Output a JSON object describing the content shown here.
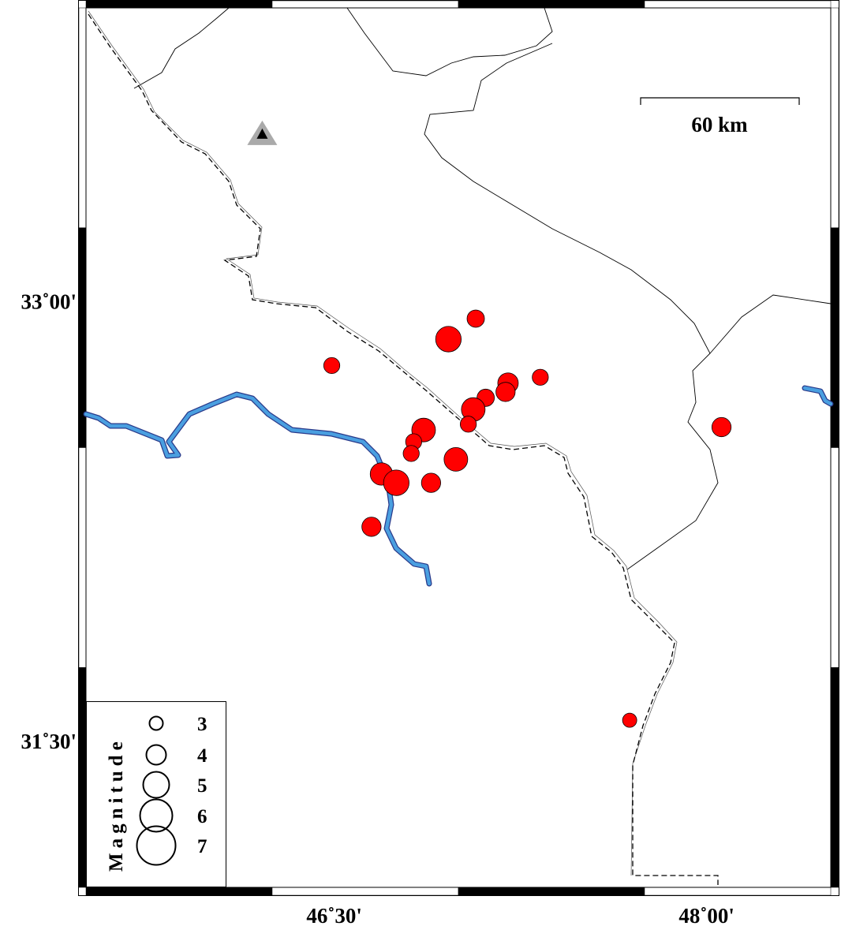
{
  "map": {
    "extent": {
      "lon_min": 45.5,
      "lon_max": 48.5,
      "lat_min": 31.0,
      "lat_max": 34.0
    },
    "x_ticks": [
      {
        "lon": 46.5,
        "label": "46˚30'"
      },
      {
        "lon": 48.0,
        "label": "48˚00'"
      }
    ],
    "y_ticks": [
      {
        "lat": 33.0,
        "label": "33˚00'"
      },
      {
        "lat": 31.5,
        "label": "31˚30'"
      }
    ],
    "scale_bar": {
      "label": "60 km",
      "length_km": 60
    },
    "colors": {
      "event": "#ff0000",
      "river": "#4a9fe0",
      "river_outline": "#2a3a8a",
      "station": "#aaaaaa"
    },
    "station": {
      "lon": 46.21,
      "lat": 33.57,
      "icon": "triangle-icon"
    },
    "events": [
      {
        "lon": 47.07,
        "lat": 32.94,
        "mag": 3.5
      },
      {
        "lon": 46.96,
        "lat": 32.87,
        "mag": 4.8
      },
      {
        "lon": 46.49,
        "lat": 32.78,
        "mag": 3.3
      },
      {
        "lon": 47.33,
        "lat": 32.74,
        "mag": 3.3
      },
      {
        "lon": 47.2,
        "lat": 32.72,
        "mag": 4.0
      },
      {
        "lon": 47.19,
        "lat": 32.69,
        "mag": 3.8
      },
      {
        "lon": 47.11,
        "lat": 32.67,
        "mag": 3.5
      },
      {
        "lon": 47.06,
        "lat": 32.63,
        "mag": 4.5
      },
      {
        "lon": 47.04,
        "lat": 32.58,
        "mag": 3.3
      },
      {
        "lon": 46.86,
        "lat": 32.56,
        "mag": 4.5
      },
      {
        "lon": 46.82,
        "lat": 32.52,
        "mag": 3.3
      },
      {
        "lon": 46.81,
        "lat": 32.48,
        "mag": 3.3
      },
      {
        "lon": 46.99,
        "lat": 32.46,
        "mag": 4.5
      },
      {
        "lon": 46.69,
        "lat": 32.41,
        "mag": 4.3
      },
      {
        "lon": 46.75,
        "lat": 32.38,
        "mag": 4.8
      },
      {
        "lon": 46.89,
        "lat": 32.38,
        "mag": 3.8
      },
      {
        "lon": 46.65,
        "lat": 32.23,
        "mag": 3.8
      },
      {
        "lon": 48.06,
        "lat": 32.57,
        "mag": 3.8
      },
      {
        "lon": 47.69,
        "lat": 31.57,
        "mag": 3.0
      }
    ]
  },
  "legend": {
    "title": "Magnitude",
    "entries": [
      {
        "mag": 3,
        "label": "3"
      },
      {
        "mag": 4,
        "label": "4"
      },
      {
        "mag": 5,
        "label": "5"
      },
      {
        "mag": 6,
        "label": "6"
      },
      {
        "mag": 7,
        "label": "7"
      }
    ]
  }
}
